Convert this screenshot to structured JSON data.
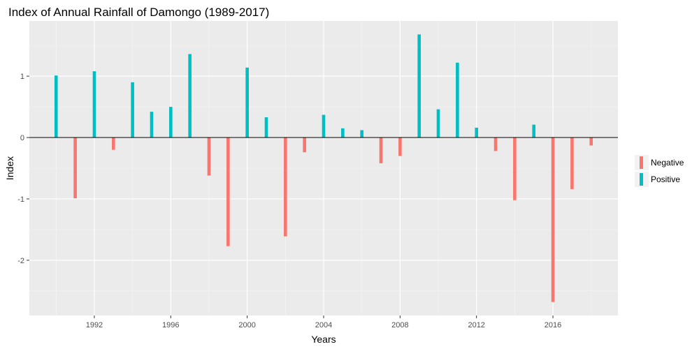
{
  "chart_data": {
    "type": "bar",
    "title": "Index of Annual Rainfall of Damongo (1989-2017)",
    "xlabel": "Years",
    "ylabel": "Index",
    "xlim": [
      1988.6,
      2019.4
    ],
    "ylim": [
      -2.9,
      1.9
    ],
    "x_ticks": [
      1992,
      1996,
      2000,
      2004,
      2008,
      2012,
      2016
    ],
    "y_ticks": [
      -2,
      -1,
      0,
      1
    ],
    "grid": true,
    "legend_position": "right",
    "series": [
      {
        "name": "Negative",
        "color": "#F8766D"
      },
      {
        "name": "Positive",
        "color": "#00BFC4"
      }
    ],
    "points": [
      {
        "x": 1990,
        "y": 1.01,
        "series": "Positive"
      },
      {
        "x": 1991,
        "y": -0.99,
        "series": "Negative"
      },
      {
        "x": 1992,
        "y": 1.08,
        "series": "Positive"
      },
      {
        "x": 1993,
        "y": -0.2,
        "series": "Negative"
      },
      {
        "x": 1994,
        "y": 0.9,
        "series": "Positive"
      },
      {
        "x": 1995,
        "y": 0.42,
        "series": "Positive"
      },
      {
        "x": 1996,
        "y": 0.5,
        "series": "Positive"
      },
      {
        "x": 1997,
        "y": 1.36,
        "series": "Positive"
      },
      {
        "x": 1998,
        "y": -0.62,
        "series": "Negative"
      },
      {
        "x": 1999,
        "y": -1.77,
        "series": "Negative"
      },
      {
        "x": 2000,
        "y": 1.14,
        "series": "Positive"
      },
      {
        "x": 2001,
        "y": 0.33,
        "series": "Positive"
      },
      {
        "x": 2002,
        "y": -1.61,
        "series": "Negative"
      },
      {
        "x": 2003,
        "y": -0.24,
        "series": "Negative"
      },
      {
        "x": 2004,
        "y": 0.37,
        "series": "Positive"
      },
      {
        "x": 2005,
        "y": 0.15,
        "series": "Positive"
      },
      {
        "x": 2006,
        "y": 0.12,
        "series": "Positive"
      },
      {
        "x": 2007,
        "y": -0.42,
        "series": "Negative"
      },
      {
        "x": 2008,
        "y": -0.3,
        "series": "Negative"
      },
      {
        "x": 2009,
        "y": 1.68,
        "series": "Positive"
      },
      {
        "x": 2010,
        "y": 0.46,
        "series": "Positive"
      },
      {
        "x": 2011,
        "y": 1.22,
        "series": "Positive"
      },
      {
        "x": 2012,
        "y": 0.16,
        "series": "Positive"
      },
      {
        "x": 2013,
        "y": -0.22,
        "series": "Negative"
      },
      {
        "x": 2014,
        "y": -1.02,
        "series": "Negative"
      },
      {
        "x": 2015,
        "y": 0.21,
        "series": "Positive"
      },
      {
        "x": 2016,
        "y": -2.68,
        "series": "Negative"
      },
      {
        "x": 2017,
        "y": -0.84,
        "series": "Negative"
      },
      {
        "x": 2018,
        "y": -0.13,
        "series": "Negative"
      }
    ]
  }
}
